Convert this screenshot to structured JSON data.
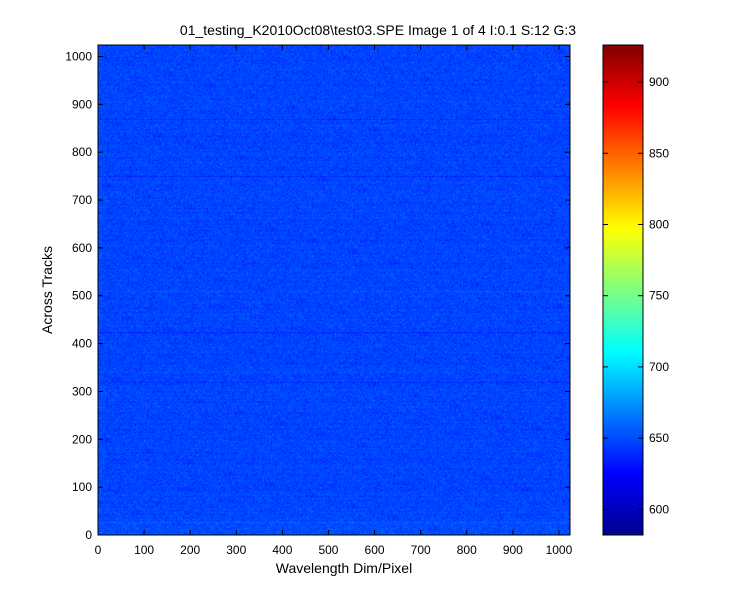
{
  "chart_data": {
    "type": "heatmap",
    "title": "01_testing_K2010Oct08\\test03.SPE  Image 1 of 4  I:0.1  S:12  G:3",
    "xlabel": "Wavelength Dim/Pixel",
    "ylabel": "Across Tracks",
    "xlim": [
      0,
      1024
    ],
    "ylim": [
      0,
      1024
    ],
    "x_ticks": [
      0,
      100,
      200,
      300,
      400,
      500,
      600,
      700,
      800,
      900,
      1000
    ],
    "y_ticks": [
      0,
      100,
      200,
      300,
      400,
      500,
      600,
      700,
      800,
      900,
      1000
    ],
    "colorbar": {
      "colormap": "jet",
      "range": [
        582,
        926
      ],
      "ticks": [
        600,
        650,
        700,
        750,
        800,
        850,
        900
      ]
    },
    "value_summary": {
      "typical": 648,
      "spread": 6,
      "dark_rows": [
        320,
        425,
        750,
        870
      ],
      "bright_rows": [
        28,
        510,
        605
      ]
    }
  }
}
